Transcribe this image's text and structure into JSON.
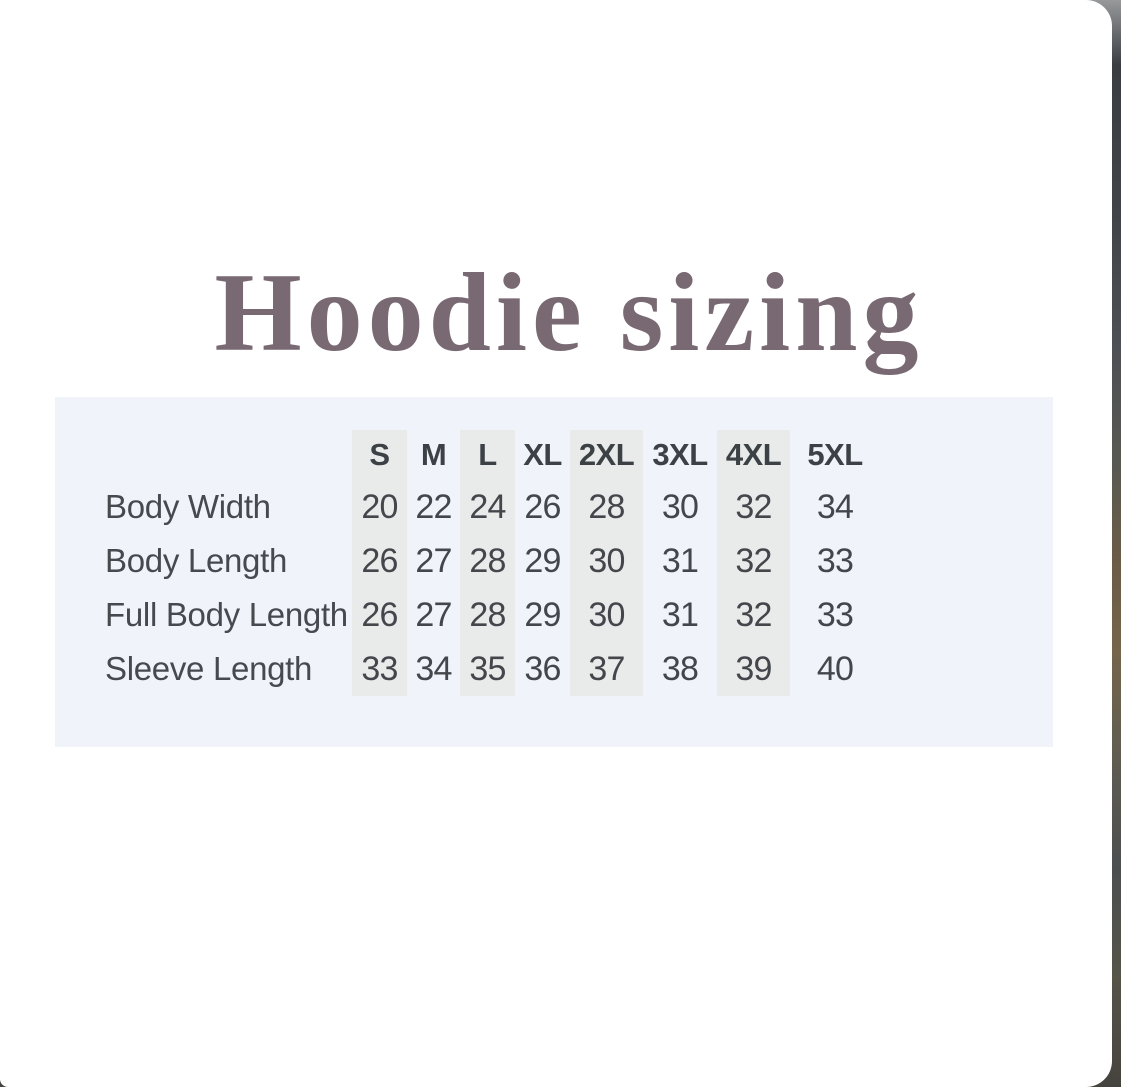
{
  "title": "Hoodie sizing",
  "chart_data": {
    "type": "table",
    "title": "Hoodie sizing",
    "columns": [
      "S",
      "M",
      "L",
      "XL",
      "2XL",
      "3XL",
      "4XL",
      "5XL"
    ],
    "rows": [
      {
        "label": "Body Width",
        "values": [
          20,
          22,
          24,
          26,
          28,
          30,
          32,
          34
        ]
      },
      {
        "label": "Body Length",
        "values": [
          26,
          27,
          28,
          29,
          30,
          31,
          32,
          33
        ]
      },
      {
        "label": "Full Body Length",
        "values": [
          26,
          27,
          28,
          29,
          30,
          31,
          32,
          33
        ]
      },
      {
        "label": "Sleeve Length",
        "values": [
          33,
          34,
          35,
          36,
          37,
          38,
          39,
          40
        ]
      }
    ],
    "striped_columns": [
      "S",
      "L",
      "2XL",
      "4XL"
    ],
    "layout": {
      "grid": "off",
      "header_position": "top",
      "row_labels_position": "left"
    },
    "colors": {
      "title_text": "#796973",
      "panel_background": "#f0f4fa",
      "column_stripe": "#e9ebea",
      "header_text": "#3c4146",
      "value_text": "#43474c",
      "card_background": "#ffffff"
    }
  }
}
